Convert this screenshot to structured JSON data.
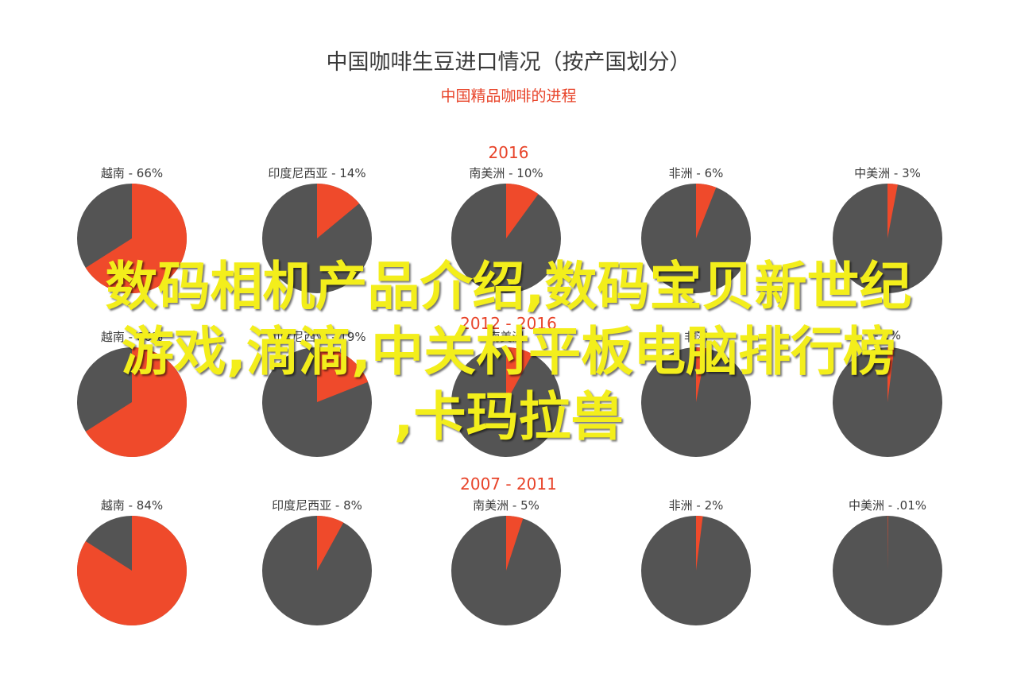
{
  "chart_data": {
    "type": "pie",
    "title": "中国咖啡生豆进口情况（按产国划分）",
    "subtitle": "中国精品咖啡的进程",
    "colors": {
      "share": "#ef4a2b",
      "rest": "#545454"
    },
    "groups": [
      {
        "label": "2016",
        "slices": [
          {
            "country": "越南",
            "label": "越南 - 66%",
            "value": 66
          },
          {
            "country": "印度尼西亚",
            "label": "印度尼西亚 - 14%",
            "value": 14
          },
          {
            "country": "南美洲",
            "label": "南美洲 - 10%",
            "value": 10
          },
          {
            "country": "非洲",
            "label": "非洲 - 6%",
            "value": 6
          },
          {
            "country": "中美洲",
            "label": "中美洲 - 3%",
            "value": 3
          }
        ]
      },
      {
        "label": "2012 - 2016",
        "slices": [
          {
            "country": "越南",
            "label": "越南 - 66%",
            "value": 66
          },
          {
            "country": "印度尼西亚",
            "label": "印度尼西亚 - 19%",
            "value": 19
          },
          {
            "country": "南美洲",
            "label": "南美洲",
            "value": 8
          },
          {
            "country": "非洲",
            "label": "非洲",
            "value": 3
          },
          {
            "country": "中美洲",
            "label": "- 2%",
            "value": 2
          }
        ]
      },
      {
        "label": "2007 - 2011",
        "slices": [
          {
            "country": "越南",
            "label": "越南 - 84%",
            "value": 84
          },
          {
            "country": "印度尼西亚",
            "label": "印度尼西亚 - 8%",
            "value": 8
          },
          {
            "country": "南美洲",
            "label": "南美洲 - 5%",
            "value": 5
          },
          {
            "country": "非洲",
            "label": "非洲 - 2%",
            "value": 2
          },
          {
            "country": "中美洲",
            "label": "中美洲 - .01%",
            "value": 0.01
          }
        ]
      }
    ]
  },
  "overlay": {
    "line1": "数码相机产品介绍,数码宝贝新世纪",
    "line2": "游戏,滴滴,中关村平板电脑排行榜",
    "line3": ",卡玛拉兽"
  }
}
